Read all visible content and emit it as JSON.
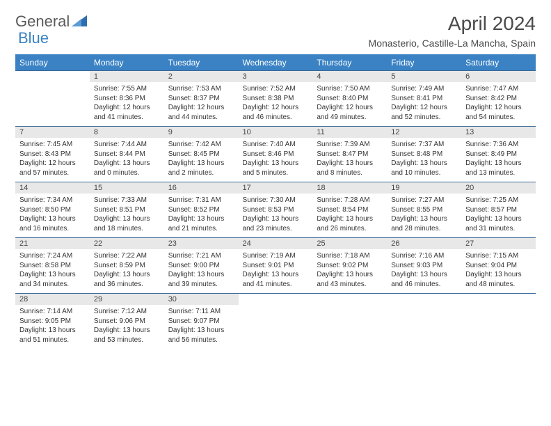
{
  "logo": {
    "text1": "General",
    "text2": "Blue"
  },
  "title": "April 2024",
  "location": "Monasterio, Castille-La Mancha, Spain",
  "colors": {
    "header_bg": "#3a82c4",
    "header_text": "#ffffff",
    "daynum_bg": "#e8e8e8",
    "border": "#3a6a9a",
    "text": "#333333"
  },
  "day_labels": [
    "Sunday",
    "Monday",
    "Tuesday",
    "Wednesday",
    "Thursday",
    "Friday",
    "Saturday"
  ],
  "weeks": [
    {
      "nums": [
        "",
        "1",
        "2",
        "3",
        "4",
        "5",
        "6"
      ],
      "cells": [
        "",
        "Sunrise: 7:55 AM\nSunset: 8:36 PM\nDaylight: 12 hours and 41 minutes.",
        "Sunrise: 7:53 AM\nSunset: 8:37 PM\nDaylight: 12 hours and 44 minutes.",
        "Sunrise: 7:52 AM\nSunset: 8:38 PM\nDaylight: 12 hours and 46 minutes.",
        "Sunrise: 7:50 AM\nSunset: 8:40 PM\nDaylight: 12 hours and 49 minutes.",
        "Sunrise: 7:49 AM\nSunset: 8:41 PM\nDaylight: 12 hours and 52 minutes.",
        "Sunrise: 7:47 AM\nSunset: 8:42 PM\nDaylight: 12 hours and 54 minutes."
      ]
    },
    {
      "nums": [
        "7",
        "8",
        "9",
        "10",
        "11",
        "12",
        "13"
      ],
      "cells": [
        "Sunrise: 7:45 AM\nSunset: 8:43 PM\nDaylight: 12 hours and 57 minutes.",
        "Sunrise: 7:44 AM\nSunset: 8:44 PM\nDaylight: 13 hours and 0 minutes.",
        "Sunrise: 7:42 AM\nSunset: 8:45 PM\nDaylight: 13 hours and 2 minutes.",
        "Sunrise: 7:40 AM\nSunset: 8:46 PM\nDaylight: 13 hours and 5 minutes.",
        "Sunrise: 7:39 AM\nSunset: 8:47 PM\nDaylight: 13 hours and 8 minutes.",
        "Sunrise: 7:37 AM\nSunset: 8:48 PM\nDaylight: 13 hours and 10 minutes.",
        "Sunrise: 7:36 AM\nSunset: 8:49 PM\nDaylight: 13 hours and 13 minutes."
      ]
    },
    {
      "nums": [
        "14",
        "15",
        "16",
        "17",
        "18",
        "19",
        "20"
      ],
      "cells": [
        "Sunrise: 7:34 AM\nSunset: 8:50 PM\nDaylight: 13 hours and 16 minutes.",
        "Sunrise: 7:33 AM\nSunset: 8:51 PM\nDaylight: 13 hours and 18 minutes.",
        "Sunrise: 7:31 AM\nSunset: 8:52 PM\nDaylight: 13 hours and 21 minutes.",
        "Sunrise: 7:30 AM\nSunset: 8:53 PM\nDaylight: 13 hours and 23 minutes.",
        "Sunrise: 7:28 AM\nSunset: 8:54 PM\nDaylight: 13 hours and 26 minutes.",
        "Sunrise: 7:27 AM\nSunset: 8:55 PM\nDaylight: 13 hours and 28 minutes.",
        "Sunrise: 7:25 AM\nSunset: 8:57 PM\nDaylight: 13 hours and 31 minutes."
      ]
    },
    {
      "nums": [
        "21",
        "22",
        "23",
        "24",
        "25",
        "26",
        "27"
      ],
      "cells": [
        "Sunrise: 7:24 AM\nSunset: 8:58 PM\nDaylight: 13 hours and 34 minutes.",
        "Sunrise: 7:22 AM\nSunset: 8:59 PM\nDaylight: 13 hours and 36 minutes.",
        "Sunrise: 7:21 AM\nSunset: 9:00 PM\nDaylight: 13 hours and 39 minutes.",
        "Sunrise: 7:19 AM\nSunset: 9:01 PM\nDaylight: 13 hours and 41 minutes.",
        "Sunrise: 7:18 AM\nSunset: 9:02 PM\nDaylight: 13 hours and 43 minutes.",
        "Sunrise: 7:16 AM\nSunset: 9:03 PM\nDaylight: 13 hours and 46 minutes.",
        "Sunrise: 7:15 AM\nSunset: 9:04 PM\nDaylight: 13 hours and 48 minutes."
      ]
    },
    {
      "nums": [
        "28",
        "29",
        "30",
        "",
        "",
        "",
        ""
      ],
      "cells": [
        "Sunrise: 7:14 AM\nSunset: 9:05 PM\nDaylight: 13 hours and 51 minutes.",
        "Sunrise: 7:12 AM\nSunset: 9:06 PM\nDaylight: 13 hours and 53 minutes.",
        "Sunrise: 7:11 AM\nSunset: 9:07 PM\nDaylight: 13 hours and 56 minutes.",
        "",
        "",
        "",
        ""
      ]
    }
  ]
}
